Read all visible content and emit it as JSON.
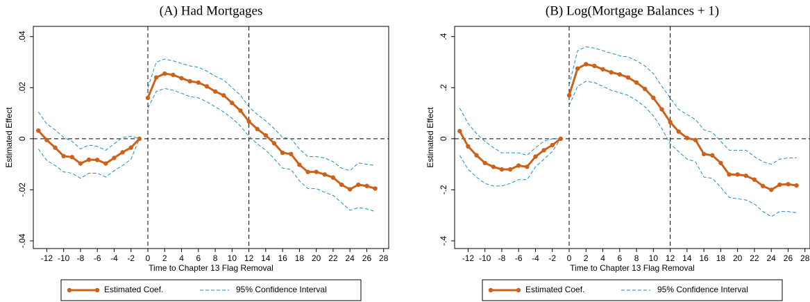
{
  "chart_data": [
    {
      "type": "line",
      "title": "(A) Had Mortgages",
      "xlabel": "Time to Chapter 13 Flag Removal",
      "ylabel": "Estimated Effect",
      "x": [
        -13,
        -12,
        -11,
        -10,
        -9,
        -8,
        -7,
        -6,
        -5,
        -4,
        -3,
        -2,
        -1,
        0,
        1,
        2,
        3,
        4,
        5,
        6,
        7,
        8,
        9,
        10,
        11,
        12,
        13,
        14,
        15,
        16,
        17,
        18,
        19,
        20,
        21,
        22,
        23,
        24,
        25,
        26,
        27
      ],
      "line_break_x": 0,
      "reference_lines": {
        "x": [
          0,
          12
        ],
        "y": [
          0
        ]
      },
      "series": [
        {
          "name": "Estimated Coef.",
          "color": "#cc6119",
          "values": [
            0.0032,
            -0.0005,
            -0.0035,
            -0.0068,
            -0.0072,
            -0.0097,
            -0.0082,
            -0.0083,
            -0.0097,
            -0.0075,
            -0.0053,
            -0.0035,
            0,
            0.016,
            0.024,
            0.0255,
            0.025,
            0.0237,
            0.0225,
            0.022,
            0.0205,
            0.0185,
            0.017,
            0.014,
            0.011,
            0.0068,
            0.0038,
            0.0013,
            -0.0018,
            -0.0055,
            -0.006,
            -0.0102,
            -0.013,
            -0.013,
            -0.014,
            -0.0152,
            -0.018,
            -0.0198,
            -0.018,
            -0.0185,
            -0.0195
          ]
        },
        {
          "name": "95% Confidence Interval",
          "color": "#1a8ccf",
          "upper": [
            0.0105,
            0.0058,
            0.0035,
            0.0005,
            -0.001,
            -0.004,
            -0.0025,
            -0.003,
            -0.0045,
            -0.002,
            0.0005,
            0.001,
            0,
            0.02,
            0.03,
            0.0312,
            0.0305,
            0.0295,
            0.0285,
            0.028,
            0.0265,
            0.0245,
            0.023,
            0.02,
            0.017,
            0.0125,
            0.0095,
            0.007,
            0.004,
            0.0005,
            0,
            -0.004,
            -0.007,
            -0.007,
            -0.0075,
            -0.009,
            -0.0115,
            -0.0125,
            -0.0095,
            -0.01,
            -0.0105
          ],
          "lower": [
            -0.004,
            -0.0085,
            -0.0105,
            -0.013,
            -0.0135,
            -0.0155,
            -0.0135,
            -0.0135,
            -0.015,
            -0.0125,
            -0.0105,
            -0.008,
            0,
            0.012,
            0.0185,
            0.0197,
            0.019,
            0.0178,
            0.0165,
            0.016,
            0.0145,
            0.0125,
            0.0105,
            0.008,
            0.005,
            0.001,
            -0.002,
            -0.0045,
            -0.0078,
            -0.0115,
            -0.012,
            -0.0165,
            -0.0195,
            -0.0195,
            -0.021,
            -0.0222,
            -0.025,
            -0.028,
            -0.027,
            -0.0275,
            -0.0285
          ]
        }
      ],
      "xlim": [
        -13.6,
        28.6
      ],
      "xticks": [
        -12,
        -10,
        -8,
        -6,
        -4,
        -2,
        0,
        2,
        4,
        6,
        8,
        10,
        12,
        14,
        16,
        18,
        20,
        22,
        24,
        26,
        28
      ],
      "ylim": [
        -0.043,
        0.044
      ],
      "yticks": [
        {
          "value": -0.04,
          "label": "-.04"
        },
        {
          "value": -0.02,
          "label": "-.02"
        },
        0,
        {
          "value": 0.02,
          "label": ".02"
        },
        {
          "value": 0.04,
          "label": ".04"
        }
      ]
    },
    {
      "type": "line",
      "title": "(B) Log(Mortgage Balances + 1)",
      "xlabel": "Time to Chapter 13 Flag Removal",
      "ylabel": "Estimated Effect",
      "x": [
        -13,
        -12,
        -11,
        -10,
        -9,
        -8,
        -7,
        -6,
        -5,
        -4,
        -3,
        -2,
        -1,
        0,
        1,
        2,
        3,
        4,
        5,
        6,
        7,
        8,
        9,
        10,
        11,
        12,
        13,
        14,
        15,
        16,
        17,
        18,
        19,
        20,
        21,
        22,
        23,
        24,
        25,
        26,
        27
      ],
      "line_break_x": 0,
      "reference_lines": {
        "x": [
          0,
          12
        ],
        "y": [
          0
        ]
      },
      "series": [
        {
          "name": "Estimated Coef.",
          "color": "#cc6119",
          "values": [
            0.03,
            -0.03,
            -0.065,
            -0.095,
            -0.11,
            -0.12,
            -0.12,
            -0.105,
            -0.11,
            -0.07,
            -0.045,
            -0.025,
            0,
            0.17,
            0.275,
            0.292,
            0.285,
            0.272,
            0.26,
            0.252,
            0.24,
            0.22,
            0.195,
            0.16,
            0.115,
            0.065,
            0.028,
            0.003,
            -0.005,
            -0.06,
            -0.065,
            -0.095,
            -0.14,
            -0.14,
            -0.145,
            -0.16,
            -0.185,
            -0.2,
            -0.18,
            -0.178,
            -0.183
          ]
        },
        {
          "name": "95% Confidence Interval",
          "color": "#1a8ccf",
          "upper": [
            0.12,
            0.06,
            0.02,
            -0.01,
            -0.035,
            -0.055,
            -0.055,
            -0.055,
            -0.065,
            -0.035,
            -0.01,
            0,
            0,
            0.21,
            0.345,
            0.36,
            0.355,
            0.345,
            0.335,
            0.325,
            0.32,
            0.305,
            0.285,
            0.255,
            0.205,
            0.16,
            0.115,
            0.095,
            0.075,
            0.035,
            0.025,
            -0.01,
            -0.045,
            -0.045,
            -0.045,
            -0.07,
            -0.09,
            -0.1,
            -0.08,
            -0.075,
            -0.075
          ],
          "lower": [
            -0.065,
            -0.12,
            -0.15,
            -0.175,
            -0.185,
            -0.185,
            -0.175,
            -0.16,
            -0.16,
            -0.11,
            -0.08,
            -0.05,
            0,
            0.13,
            0.205,
            0.225,
            0.22,
            0.205,
            0.19,
            0.18,
            0.17,
            0.15,
            0.125,
            0.09,
            0.04,
            -0.02,
            -0.05,
            -0.08,
            -0.09,
            -0.15,
            -0.155,
            -0.19,
            -0.23,
            -0.235,
            -0.24,
            -0.255,
            -0.285,
            -0.305,
            -0.285,
            -0.285,
            -0.29
          ]
        }
      ],
      "xlim": [
        -13.6,
        28.6
      ],
      "xticks": [
        -12,
        -10,
        -8,
        -6,
        -4,
        -2,
        0,
        2,
        4,
        6,
        8,
        10,
        12,
        14,
        16,
        18,
        20,
        22,
        24,
        26,
        28
      ],
      "ylim": [
        -0.43,
        0.44
      ],
      "yticks": [
        {
          "value": -0.4,
          "label": "-.4"
        },
        {
          "value": -0.2,
          "label": "-.2"
        },
        0,
        {
          "value": 0.2,
          "label": ".2"
        },
        {
          "value": 0.4,
          "label": ".4"
        }
      ]
    }
  ]
}
